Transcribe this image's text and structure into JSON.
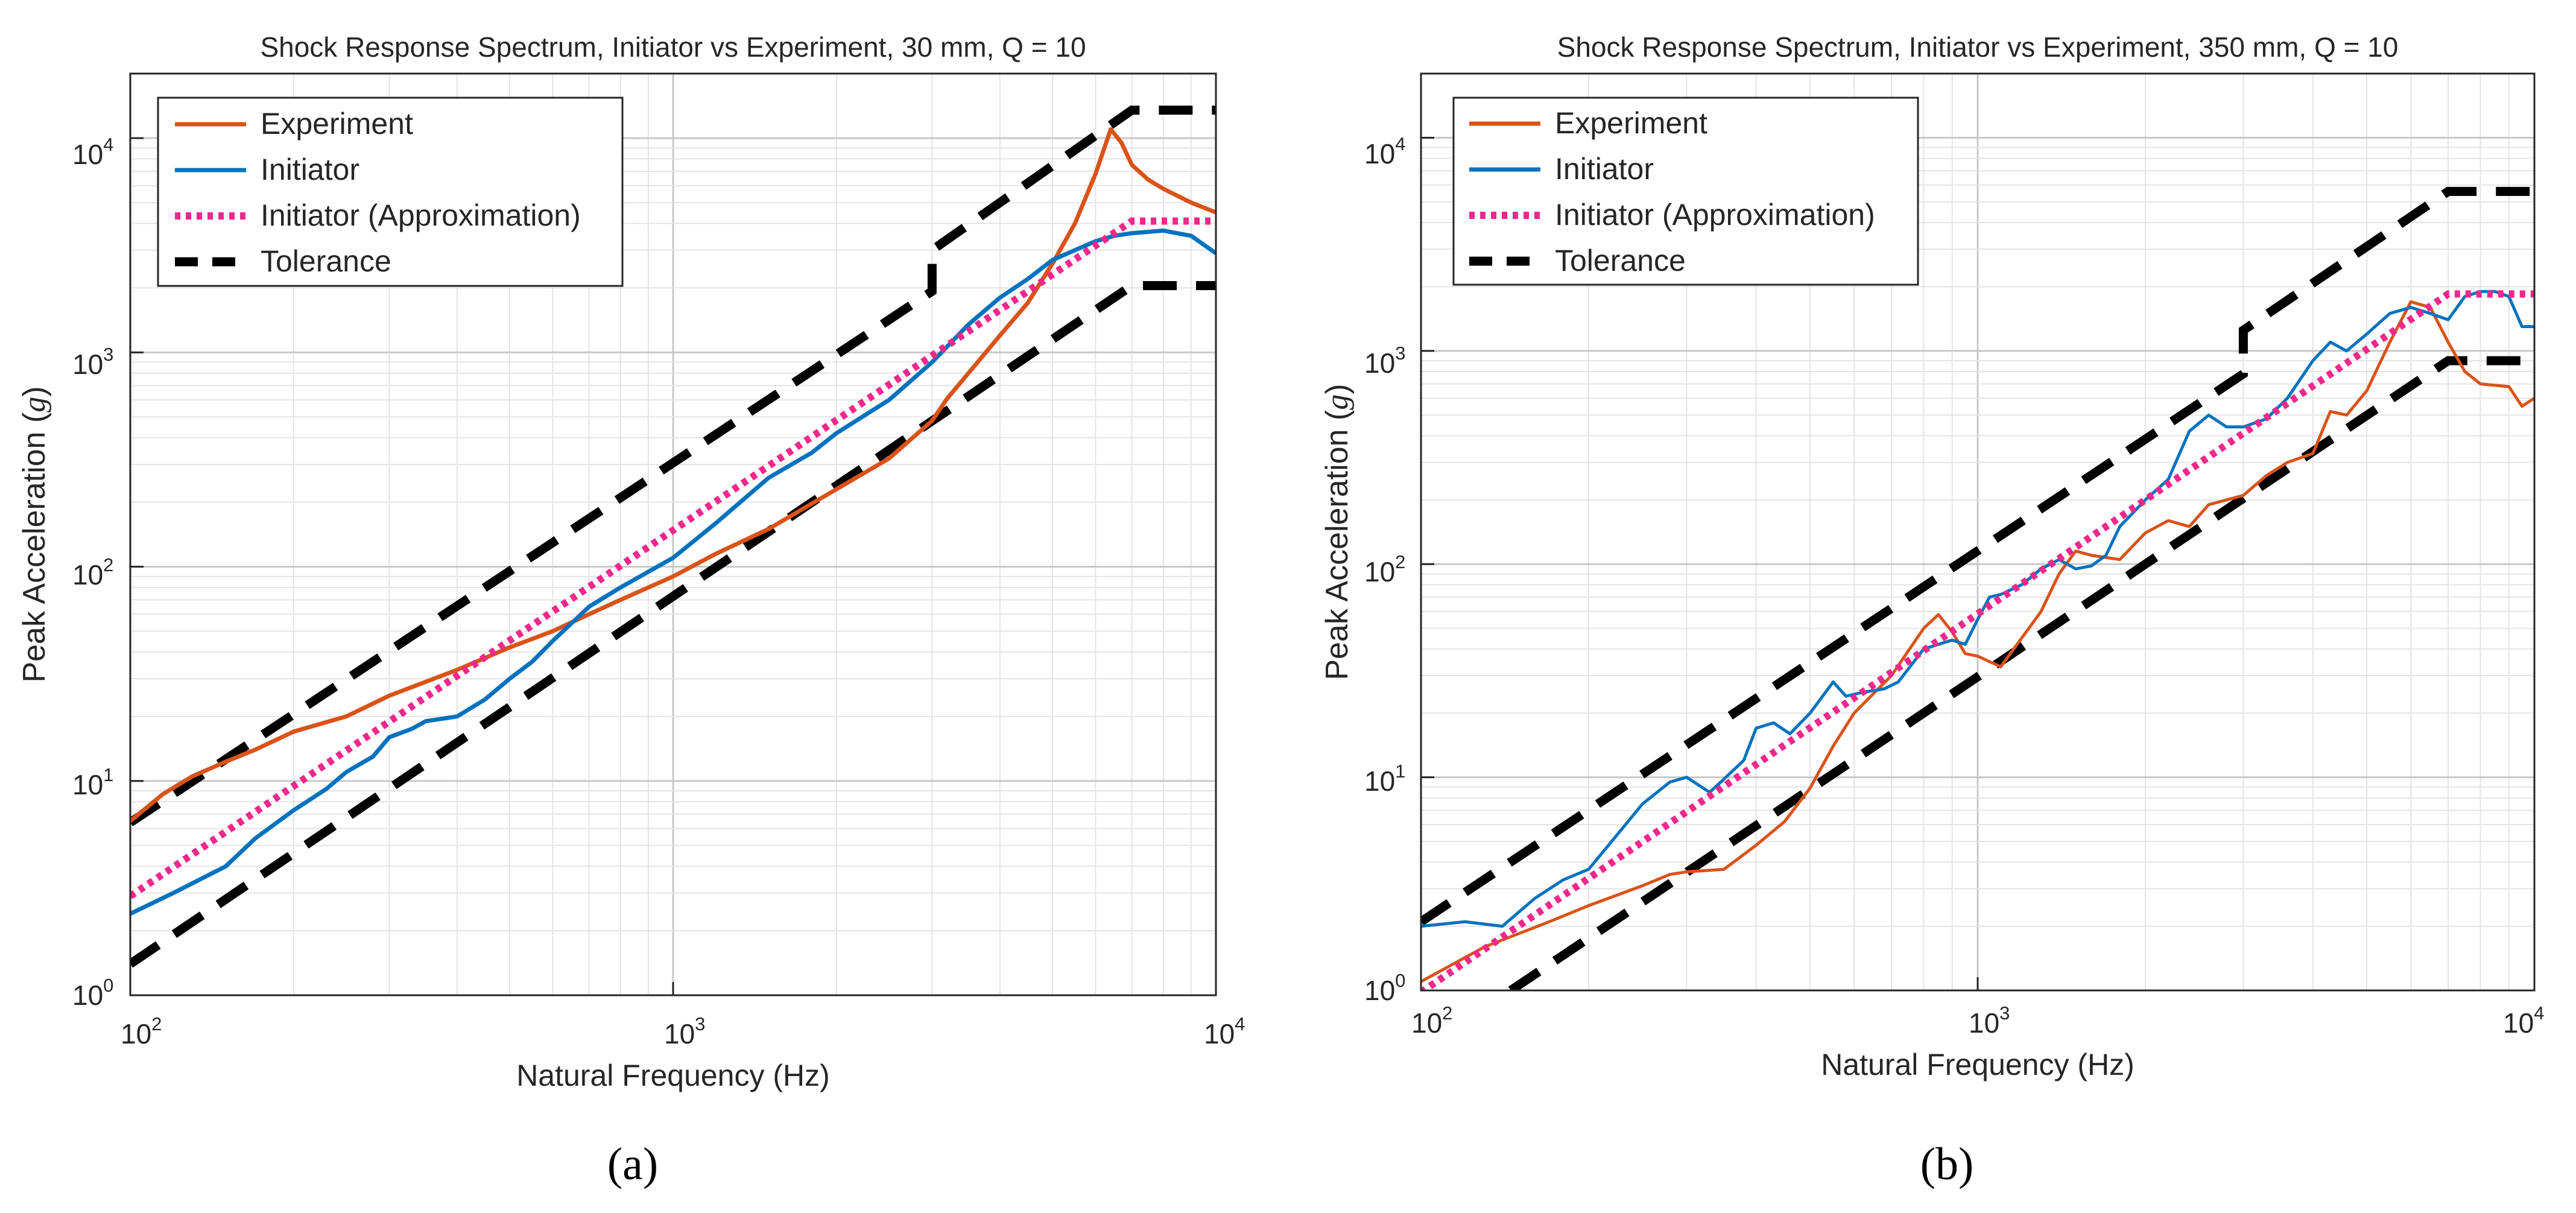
{
  "colors": {
    "experiment": "#D95319",
    "initiator": "#0072BD",
    "approximation": "#F0288C",
    "tolerance": "#000000",
    "grid_major": "#C8C8C8",
    "grid_minor": "#E4E4E4"
  },
  "chart_data": [
    {
      "id": "a",
      "type": "line",
      "scale": "log-log",
      "panel_label": "(a)",
      "title": "Shock Response Spectrum, Initiator vs Experiment, 30 mm, Q = 10",
      "xlabel": "Natural Frequency (Hz)",
      "ylabel": "Peak Acceleration (g)",
      "ylabel_prefix": "Peak Acceleration (",
      "ylabel_unit": "g",
      "ylabel_suffix": ")",
      "xlim": [
        100,
        10000
      ],
      "ylim": [
        1,
        20000
      ],
      "x_ticks": [
        {
          "value": 100,
          "base": "10",
          "exp": "2"
        },
        {
          "value": 1000,
          "base": "10",
          "exp": "3"
        },
        {
          "value": 10000,
          "base": "10",
          "exp": "4"
        }
      ],
      "y_ticks": [
        {
          "value": 1,
          "base": "10",
          "exp": "0"
        },
        {
          "value": 10,
          "base": "10",
          "exp": "1"
        },
        {
          "value": 100,
          "base": "10",
          "exp": "2"
        },
        {
          "value": 1000,
          "base": "10",
          "exp": "3"
        },
        {
          "value": 10000,
          "base": "10",
          "exp": "4"
        }
      ],
      "grid": true,
      "legend_position": "top-left",
      "series": [
        {
          "name": "Experiment",
          "style": "solid",
          "color_key": "experiment",
          "x": [
            100,
            115,
            130,
            150,
            170,
            200,
            250,
            300,
            400,
            500,
            600,
            700,
            800,
            1000,
            1200,
            1500,
            2000,
            2500,
            3000,
            3200,
            3500,
            4000,
            4500,
            5000,
            5500,
            6000,
            6400,
            6700,
            7000,
            7500,
            8000,
            9000,
            10000
          ],
          "y": [
            6.5,
            8.7,
            10.5,
            12.3,
            14,
            17,
            20,
            25,
            33,
            42,
            50,
            60,
            70,
            90,
            115,
            150,
            230,
            320,
            480,
            610,
            800,
            1200,
            1700,
            2600,
            4000,
            6800,
            11000,
            9500,
            7500,
            6400,
            5800,
            5000,
            4500
          ]
        },
        {
          "name": "Initiator",
          "style": "solid",
          "color_key": "initiator",
          "x": [
            100,
            120,
            150,
            170,
            200,
            230,
            250,
            280,
            300,
            330,
            350,
            400,
            450,
            500,
            550,
            600,
            700,
            800,
            1000,
            1200,
            1500,
            1800,
            2000,
            2500,
            3000,
            3500,
            4000,
            4500,
            5000,
            5500,
            6000,
            6500,
            7000,
            8000,
            9000,
            10000
          ],
          "y": [
            2.4,
            3.0,
            4.0,
            5.4,
            7.3,
            9.2,
            11,
            13,
            16,
            17.5,
            19,
            20,
            24,
            30,
            36,
            45,
            65,
            80,
            110,
            160,
            260,
            340,
            420,
            600,
            900,
            1350,
            1800,
            2200,
            2700,
            3000,
            3300,
            3500,
            3600,
            3700,
            3500,
            2900
          ]
        },
        {
          "name": "Initiator (Approximation)",
          "style": "dotted",
          "color_key": "approximation",
          "x": [
            100,
            7000,
            10000
          ],
          "y": [
            2.9,
            4100,
            4100
          ]
        },
        {
          "name": "Tolerance",
          "style": "dashed",
          "color_key": "tolerance",
          "legend": true,
          "x": [
            100,
            3000,
            3000,
            7000,
            10000
          ],
          "y": [
            6.4,
            1930,
            3000,
            13500,
            13500
          ]
        },
        {
          "name": "Tolerance",
          "style": "dashed",
          "color_key": "tolerance",
          "legend": false,
          "x": [
            100,
            7000,
            10000
          ],
          "y": [
            1.4,
            2050,
            2050
          ]
        }
      ]
    },
    {
      "id": "b",
      "type": "line",
      "scale": "log-log",
      "panel_label": "(b)",
      "title": "Shock Response Spectrum, Initiator vs Experiment, 350 mm, Q = 10",
      "xlabel": "Natural Frequency (Hz)",
      "ylabel": "Peak Acceleration (g)",
      "ylabel_prefix": "Peak Acceleration (",
      "ylabel_unit": "g",
      "ylabel_suffix": ")",
      "xlim": [
        100,
        10000
      ],
      "ylim": [
        1,
        20000
      ],
      "x_ticks": [
        {
          "value": 100,
          "base": "10",
          "exp": "2"
        },
        {
          "value": 1000,
          "base": "10",
          "exp": "3"
        },
        {
          "value": 10000,
          "base": "10",
          "exp": "4"
        }
      ],
      "y_ticks": [
        {
          "value": 1,
          "base": "10",
          "exp": "0"
        },
        {
          "value": 10,
          "base": "10",
          "exp": "1"
        },
        {
          "value": 100,
          "base": "10",
          "exp": "2"
        },
        {
          "value": 1000,
          "base": "10",
          "exp": "3"
        },
        {
          "value": 10000,
          "base": "10",
          "exp": "4"
        }
      ],
      "grid": true,
      "legend_position": "top-left",
      "series": [
        {
          "name": "Experiment",
          "style": "solid",
          "color_key": "experiment",
          "x": [
            100,
            130,
            170,
            200,
            250,
            280,
            300,
            350,
            400,
            450,
            500,
            550,
            600,
            700,
            800,
            850,
            900,
            950,
            1000,
            1100,
            1200,
            1300,
            1400,
            1500,
            1600,
            1800,
            2000,
            2200,
            2400,
            2600,
            2800,
            3000,
            3300,
            3600,
            4000,
            4300,
            4600,
            5000,
            5500,
            6000,
            6500,
            7000,
            7500,
            8000,
            9000,
            9500,
            10000
          ],
          "y": [
            1.1,
            1.6,
            2.1,
            2.5,
            3.1,
            3.5,
            3.6,
            3.7,
            4.8,
            6.2,
            8.9,
            14,
            20,
            30,
            50,
            58,
            48,
            38,
            37,
            33,
            45,
            60,
            90,
            115,
            110,
            105,
            140,
            160,
            150,
            190,
            200,
            210,
            260,
            300,
            330,
            520,
            500,
            650,
            1100,
            1700,
            1600,
            1100,
            800,
            700,
            680,
            550,
            600
          ]
        },
        {
          "name": "Initiator",
          "style": "solid",
          "color_key": "initiator",
          "x": [
            100,
            120,
            140,
            160,
            180,
            200,
            220,
            250,
            280,
            300,
            330,
            350,
            380,
            400,
            430,
            460,
            500,
            550,
            580,
            620,
            680,
            720,
            800,
            850,
            900,
            950,
            1000,
            1050,
            1100,
            1200,
            1300,
            1400,
            1500,
            1600,
            1700,
            1800,
            2000,
            2200,
            2400,
            2600,
            2800,
            3000,
            3300,
            3600,
            4000,
            4300,
            4600,
            5000,
            5500,
            6000,
            6500,
            7000,
            7500,
            8000,
            8500,
            9000,
            9500,
            10000
          ],
          "y": [
            2.0,
            2.1,
            2.0,
            2.7,
            3.3,
            3.7,
            5.0,
            7.5,
            9.5,
            10,
            8.5,
            9.8,
            12,
            17,
            18,
            16,
            20,
            28,
            24,
            25,
            26,
            28,
            40,
            42,
            44,
            42,
            55,
            70,
            72,
            80,
            95,
            105,
            95,
            98,
            110,
            150,
            200,
            250,
            420,
            500,
            440,
            440,
            480,
            600,
            900,
            1100,
            1000,
            1200,
            1500,
            1600,
            1500,
            1400,
            1800,
            1900,
            1900,
            1800,
            1300,
            1300
          ]
        },
        {
          "name": "Initiator (Approximation)",
          "style": "dotted",
          "color_key": "approximation",
          "x": [
            100,
            7000,
            10000
          ],
          "y": [
            0.98,
            1850,
            1850
          ]
        },
        {
          "name": "Tolerance",
          "style": "dashed",
          "color_key": "tolerance",
          "legend": true,
          "x": [
            100,
            3000,
            3000,
            7000,
            10000
          ],
          "y": [
            2.1,
            780,
            1250,
            5600,
            5600
          ]
        },
        {
          "name": "Tolerance",
          "style": "dashed",
          "color_key": "tolerance",
          "legend": false,
          "x": [
            145,
            7000,
            10000
          ],
          "y": [
            1.0,
            900,
            900
          ]
        }
      ]
    }
  ]
}
